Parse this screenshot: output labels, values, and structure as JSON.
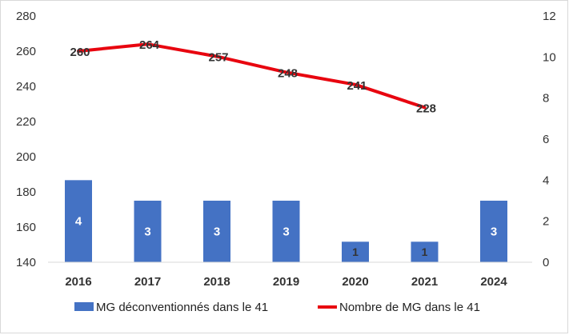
{
  "chart_data": {
    "type": "bar+line",
    "categories": [
      "2016",
      "2017",
      "2018",
      "2019",
      "2020",
      "2021",
      "2024"
    ],
    "series": [
      {
        "name": "MG déconventionnés dans le 41",
        "type": "bar",
        "axis": "right",
        "color": "#4472C4",
        "values": [
          4,
          3,
          3,
          3,
          1,
          1,
          3
        ],
        "labels": [
          "4",
          "3",
          "3",
          "3",
          "1",
          "1",
          "3"
        ]
      },
      {
        "name": "Nombre de MG dans le 41",
        "type": "line",
        "axis": "left",
        "color": "#E8050F",
        "values": [
          260,
          264,
          257,
          248,
          241,
          228,
          null
        ],
        "labels": [
          "260",
          "264",
          "257",
          "248",
          "241",
          "228",
          ""
        ]
      }
    ],
    "left_axis": {
      "ylim": [
        140,
        280
      ],
      "ticks": [
        "140",
        "160",
        "180",
        "200",
        "220",
        "240",
        "260",
        "280"
      ]
    },
    "right_axis": {
      "ylim": [
        0,
        12
      ],
      "ticks": [
        "0",
        "2",
        "4",
        "6",
        "8",
        "10",
        "12"
      ]
    },
    "grid": false,
    "legend": "bottom"
  }
}
